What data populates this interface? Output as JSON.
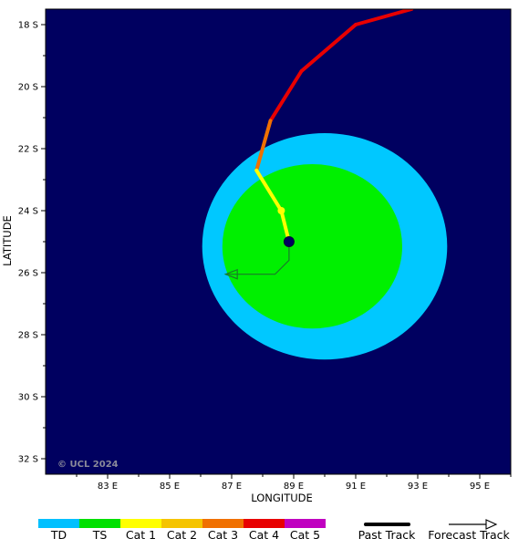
{
  "map": {
    "background_color": "#000060",
    "lon_range": [
      81,
      96
    ],
    "lat_range": [
      -32.5,
      -17.5
    ],
    "x_ticks": [
      {
        "lon": 83,
        "label": "83 E"
      },
      {
        "lon": 85,
        "label": "85 E"
      },
      {
        "lon": 87,
        "label": "87 E"
      },
      {
        "lon": 89,
        "label": "89 E"
      },
      {
        "lon": 91,
        "label": "91 E"
      },
      {
        "lon": 93,
        "label": "93 E"
      },
      {
        "lon": 95,
        "label": "95 E"
      }
    ],
    "y_ticks": [
      {
        "lat": -18,
        "label": "18 S"
      },
      {
        "lat": -20,
        "label": "20 S"
      },
      {
        "lat": -22,
        "label": "22 S"
      },
      {
        "lat": -24,
        "label": "24 S"
      },
      {
        "lat": -26,
        "label": "26 S"
      },
      {
        "lat": -28,
        "label": "28 S"
      },
      {
        "lat": -30,
        "label": "30 S"
      },
      {
        "lat": -32,
        "label": "32 S"
      }
    ],
    "xlabel": "LONGITUDE",
    "ylabel": "LATITUDE",
    "copyright": "© UCL 2024"
  },
  "wind_field": [
    {
      "name": "TS",
      "color": "#00c8ff",
      "center_lon": 90.0,
      "center_lat": -25.15,
      "radius_lon": 3.95,
      "radius_lat": 3.65
    },
    {
      "name": "Cat 1",
      "color": "#00f000",
      "center_lon": 89.6,
      "center_lat": -25.15,
      "radius_lon": 2.9,
      "radius_lat": 2.65
    }
  ],
  "past_track": [
    {
      "lon": 92.8,
      "lat": -17.5,
      "category": "Cat 4"
    },
    {
      "lon": 91.0,
      "lat": -18.0,
      "category": "Cat 4"
    },
    {
      "lon": 89.25,
      "lat": -19.5,
      "category": "Cat 4"
    },
    {
      "lon": 88.25,
      "lat": -21.1,
      "category": "Cat 3"
    },
    {
      "lon": 87.8,
      "lat": -22.7,
      "category": "Cat 1"
    },
    {
      "lon": 88.6,
      "lat": -24.0,
      "category": "Cat 1"
    },
    {
      "lon": 88.85,
      "lat": -25.0,
      "category": "Cat 1"
    }
  ],
  "past_points": [
    {
      "lon": 88.6,
      "lat": -24.0,
      "color": "#ffff00"
    }
  ],
  "current_position": {
    "lon": 88.85,
    "lat": -25.0
  },
  "forecast_track": [
    {
      "lon": 88.85,
      "lat": -25.0
    },
    {
      "lon": 88.85,
      "lat": -25.6
    },
    {
      "lon": 88.4,
      "lat": -26.05
    },
    {
      "lon": 86.8,
      "lat": -26.05
    }
  ],
  "forecast_color": "#1a7a2a",
  "legend": {
    "categories": [
      {
        "label": "TD",
        "color": "#00c0ff"
      },
      {
        "label": "TS",
        "color": "#00e000"
      },
      {
        "label": "Cat 1",
        "color": "#ffff00"
      },
      {
        "label": "Cat 2",
        "color": "#f5c400"
      },
      {
        "label": "Cat 3",
        "color": "#f07000"
      },
      {
        "label": "Cat 4",
        "color": "#e80000"
      },
      {
        "label": "Cat 5",
        "color": "#c000c0"
      }
    ],
    "past_track_label": "Past Track",
    "forecast_track_label": "Forecast Track"
  }
}
